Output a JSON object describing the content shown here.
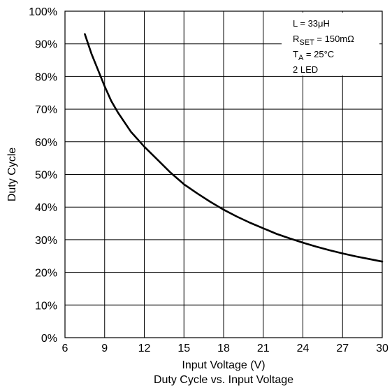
{
  "chart_data": {
    "type": "line",
    "title": "Duty Cycle vs. Input Voltage",
    "xlabel": "Input Voltage (V)",
    "ylabel": "Duty Cycle",
    "xlim": [
      6,
      30
    ],
    "ylim": [
      0,
      100
    ],
    "x_ticks": [
      6,
      9,
      12,
      15,
      18,
      21,
      24,
      27,
      30
    ],
    "y_ticks": [
      0,
      10,
      20,
      30,
      40,
      50,
      60,
      70,
      80,
      90,
      100
    ],
    "y_tick_suffix": "%",
    "grid": true,
    "legend_placement": "top-right",
    "conditions": [
      {
        "main": "L = 33μH"
      },
      {
        "main": "R",
        "sub": "SET",
        "rest": " = 150mΩ"
      },
      {
        "main": "T",
        "sub": "A",
        "rest": " = 25°C"
      },
      {
        "main": "2 LED"
      }
    ],
    "series": [
      {
        "color": "#000000",
        "x": [
          7.5,
          8.0,
          8.5,
          9.0,
          9.5,
          10,
          11,
          12,
          13,
          14,
          15,
          16,
          17,
          18,
          19,
          20,
          21,
          22,
          23,
          24,
          25,
          26,
          27,
          28,
          29,
          30
        ],
        "y": [
          93,
          87,
          82,
          77,
          72.5,
          69,
          63,
          58.5,
          54.5,
          50.5,
          47,
          44.2,
          41.6,
          39.2,
          37.1,
          35.2,
          33.5,
          31.8,
          30.4,
          29.1,
          27.9,
          26.8,
          25.8,
          24.9,
          24.1,
          23.3
        ]
      }
    ]
  }
}
